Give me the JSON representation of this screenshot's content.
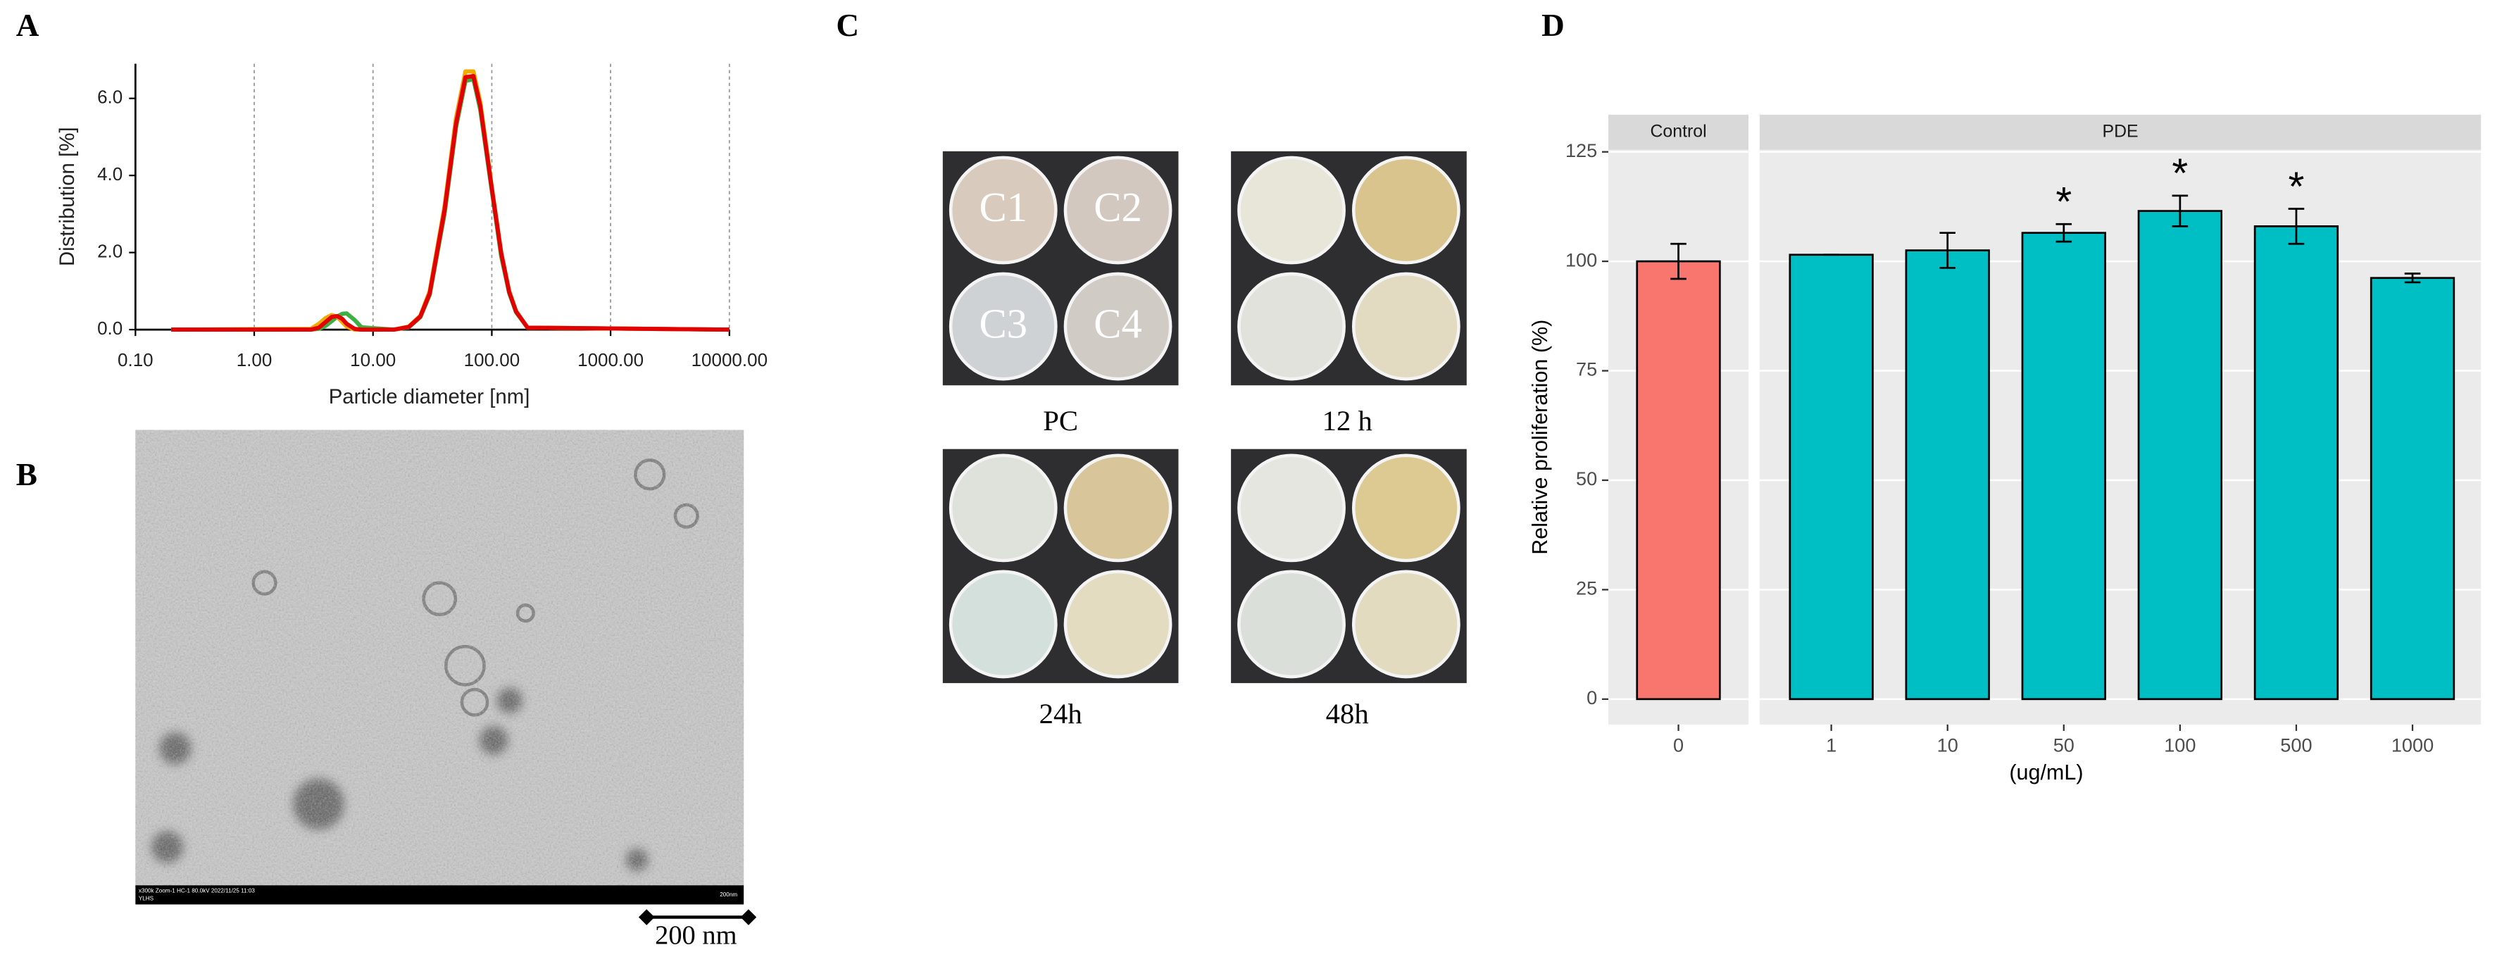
{
  "panel_labels": [
    "A",
    "B",
    "C",
    "D"
  ],
  "chart_data": [
    {
      "type": "line",
      "xlabel": "Particle diameter [nm]",
      "ylabel": "Distribution [%]",
      "log_x": true,
      "grid": "x",
      "xlim": [
        0.1,
        10000
      ],
      "ylim": [
        0,
        6.9
      ],
      "xticks": [
        {
          "value": 0.1,
          "label": "0.10"
        },
        {
          "value": 1,
          "label": "1.00"
        },
        {
          "value": 10,
          "label": "10.00"
        },
        {
          "value": 100,
          "label": "100.00"
        },
        {
          "value": 1000,
          "label": "1000.00"
        },
        {
          "value": 10000,
          "label": "10000.00"
        }
      ],
      "yticks": [
        {
          "value": 0,
          "label": "0.0"
        },
        {
          "value": 2,
          "label": "2.0"
        },
        {
          "value": 4,
          "label": "4.0"
        },
        {
          "value": 6,
          "label": "6.0"
        }
      ],
      "x": [
        0.2,
        3,
        3.5,
        4,
        4.5,
        5,
        5.5,
        6,
        7,
        8,
        15,
        20,
        25,
        30,
        40,
        50,
        60,
        70,
        80,
        100,
        120,
        140,
        160,
        200,
        10000
      ],
      "series": [
        {
          "color": "#3cb043",
          "values": [
            0,
            0,
            0.02,
            0.1,
            0.22,
            0.34,
            0.41,
            0.42,
            0.25,
            0.06,
            0,
            0.06,
            0.32,
            0.9,
            3.0,
            5.25,
            6.45,
            6.5,
            5.7,
            3.6,
            1.9,
            0.95,
            0.45,
            0.05,
            0
          ]
        },
        {
          "color": "#f2a900",
          "values": [
            0,
            0.02,
            0.15,
            0.3,
            0.38,
            0.33,
            0.2,
            0.08,
            0,
            0,
            0,
            0.08,
            0.36,
            1.0,
            3.2,
            5.5,
            6.7,
            6.7,
            5.9,
            3.7,
            2.0,
            1.0,
            0.48,
            0.05,
            0
          ]
        },
        {
          "color": "#e30000",
          "values": [
            0,
            0,
            0.05,
            0.2,
            0.33,
            0.35,
            0.28,
            0.15,
            0.02,
            0,
            0,
            0.07,
            0.34,
            0.94,
            3.1,
            5.35,
            6.55,
            6.58,
            5.8,
            3.66,
            1.98,
            0.98,
            0.47,
            0.05,
            0
          ]
        }
      ]
    },
    {
      "type": "bar",
      "ylabel": "Relative proliferation (%)",
      "xlabel": "(ug/mL)",
      "ylim": [
        -5.8,
        125.5
      ],
      "yticks": [
        0,
        25,
        50,
        75,
        100,
        125
      ],
      "grid": true,
      "series": [
        {
          "name": "Control",
          "color": "#f8766d",
          "categories": [
            "0"
          ],
          "values": [
            100
          ],
          "errors": [
            4
          ]
        },
        {
          "name": "PDE",
          "color": "#00bfc4",
          "categories": [
            "1",
            "10",
            "50",
            "100",
            "500",
            "1000"
          ],
          "values": [
            101.5,
            102.5,
            106.5,
            111.5,
            108,
            96.2
          ],
          "errors": [
            0,
            4,
            2,
            3.5,
            4,
            1
          ],
          "significance": [
            null,
            null,
            "*",
            "*",
            "*",
            null
          ]
        }
      ]
    }
  ],
  "tem": {
    "caption": "x300k Zoom-1 HC-1 80.0kV 2022/11/25 11:03",
    "operator": "YLHS",
    "bar_text": "200nm",
    "scale_bar": "200 nm"
  },
  "plates": {
    "dish_labels": [
      "C1",
      "C2",
      "C3",
      "C4"
    ],
    "captions": [
      "PC",
      "12 h",
      "24h",
      "48h"
    ]
  }
}
